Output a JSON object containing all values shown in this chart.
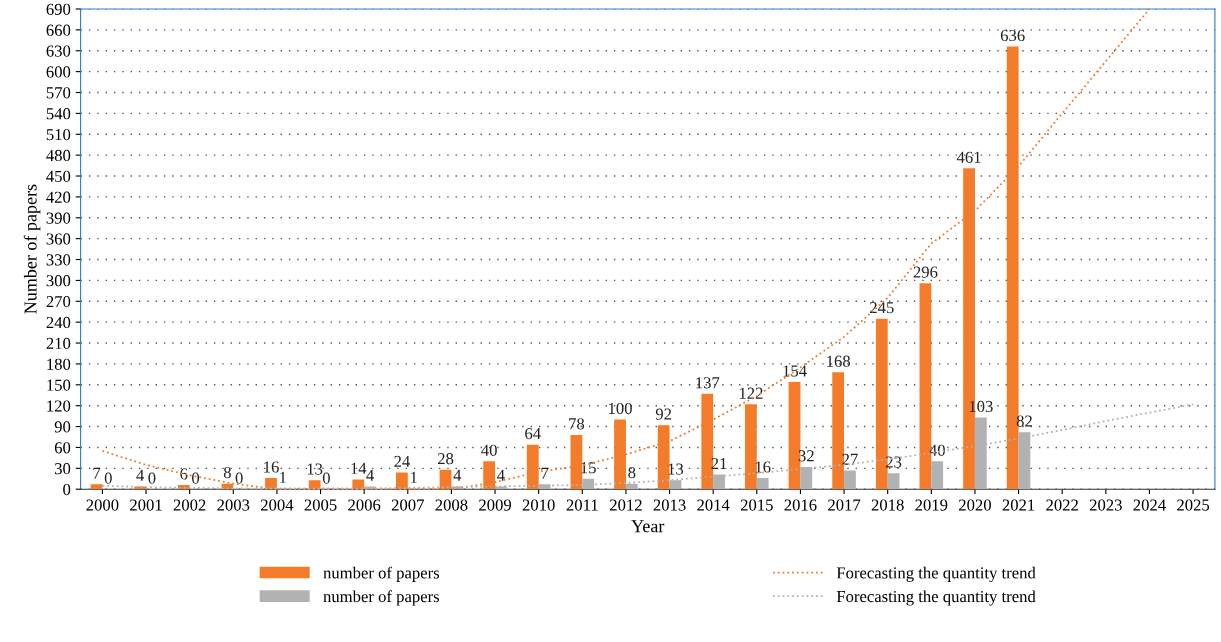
{
  "chart_data": {
    "type": "bar",
    "xlabel": "Year",
    "ylabel": "Number of papers",
    "categories": [
      "2000",
      "2001",
      "2002",
      "2003",
      "2004",
      "2005",
      "2006",
      "2007",
      "2008",
      "2009",
      "2010",
      "2011",
      "2012",
      "2013",
      "2014",
      "2015",
      "2016",
      "2017",
      "2018",
      "2019",
      "2020",
      "2021",
      "2022",
      "2023",
      "2024",
      "2025"
    ],
    "series": [
      {
        "name": "number of papers",
        "color": "#f47b2a",
        "values": [
          7,
          4,
          6,
          8,
          16,
          13,
          14,
          24,
          28,
          40,
          64,
          78,
          100,
          92,
          137,
          122,
          154,
          168,
          245,
          296,
          461,
          636,
          null,
          null,
          null,
          null
        ],
        "value_labels": [
          "7",
          "4",
          "6",
          "8",
          "16",
          "13",
          "14",
          "24",
          "28",
          "40",
          "64",
          "78",
          "100",
          "92",
          "137",
          "122",
          "154",
          "168",
          "245",
          "296",
          "461",
          "636",
          null,
          null,
          null,
          null
        ]
      },
      {
        "name": "number of papers",
        "color": "#b1b2b4",
        "values": [
          0,
          0,
          0,
          0,
          1,
          0,
          4,
          1,
          4,
          4,
          7,
          15,
          8,
          13,
          21,
          16,
          32,
          27,
          23,
          40,
          103,
          82,
          null,
          null,
          null,
          null
        ],
        "value_labels": [
          "0",
          "0",
          "0",
          "0",
          "1",
          "0",
          "4",
          "1",
          "4",
          "4",
          "7",
          "15",
          "8",
          "13",
          "21",
          "16",
          "32",
          "27",
          "23",
          "40",
          "103",
          "82",
          null,
          null,
          null,
          null
        ]
      },
      {
        "name": "Forecasting the quantity trend",
        "type": "line",
        "line_style": "dotted",
        "color": "#f47b2a",
        "values": [
          55,
          35,
          20,
          8,
          0,
          0,
          0,
          0,
          0,
          10,
          25,
          34,
          50,
          69,
          100,
          134,
          175,
          219,
          275,
          353,
          400,
          464,
          540,
          615,
          690,
          null
        ]
      },
      {
        "name": "Forecasting the quantity trend",
        "type": "line",
        "line_style": "dotted",
        "color": "#b1b2b4",
        "values": [
          5,
          3,
          2,
          1,
          1,
          1,
          1,
          2,
          3,
          4,
          5,
          6,
          9,
          13,
          18,
          23,
          29,
          35,
          43,
          52,
          62,
          73,
          85,
          98,
          110,
          122
        ]
      }
    ],
    "ylim": [
      0,
      690
    ],
    "yticks": [
      0,
      30,
      60,
      90,
      120,
      150,
      180,
      210,
      240,
      270,
      300,
      330,
      360,
      390,
      420,
      450,
      480,
      510,
      540,
      570,
      600,
      630,
      660,
      690
    ],
    "grid": "y",
    "legend": "bottom"
  }
}
